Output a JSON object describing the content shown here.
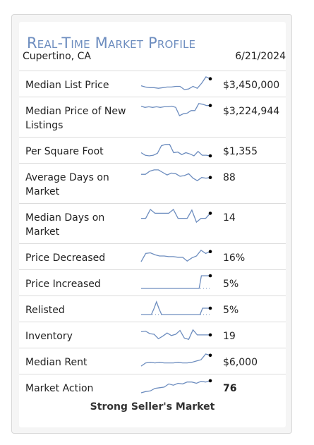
{
  "header": {
    "title": "Real-Time Market Profile",
    "location": "Cupertino, CA",
    "date": "6/21/2024"
  },
  "colors": {
    "line": "#6d8dbf",
    "dot": "#000000",
    "title": "#6d8dbf"
  },
  "rows": [
    {
      "label": "Median List Price",
      "value": "$3,450,000",
      "bold": false,
      "trend": [
        0.3,
        0.2,
        0.15,
        0.15,
        0.1,
        0.15,
        0.2,
        0.2,
        0.25,
        0.25,
        0.0,
        0.05,
        0.25,
        0.1,
        0.5,
        1.0,
        0.85
      ]
    },
    {
      "label": "Median Price of New Listings",
      "value": "$3,224,944",
      "bold": false,
      "trend": [
        0.75,
        0.65,
        0.7,
        0.65,
        0.7,
        0.65,
        0.7,
        0.7,
        0.75,
        0.65,
        0.0,
        0.15,
        0.2,
        0.4,
        0.4,
        0.95,
        0.9,
        0.8,
        0.8
      ]
    },
    {
      "label": "Per Square Foot",
      "value": "$1,355",
      "bold": false,
      "trend": [
        0.25,
        0.05,
        0.0,
        0.05,
        0.2,
        0.8,
        0.9,
        0.9,
        0.25,
        0.3,
        0.1,
        0.25,
        0.15,
        0.0,
        0.35,
        0.05,
        0.05,
        0.0
      ]
    },
    {
      "label": "Average Days on Market",
      "value": "88",
      "bold": false,
      "trend": [
        0.6,
        0.6,
        0.85,
        0.95,
        0.95,
        0.75,
        0.55,
        0.7,
        0.65,
        0.45,
        0.5,
        0.65,
        0.3,
        0.1,
        0.35,
        0.3,
        0.35
      ]
    },
    {
      "label": "Median Days on Market",
      "value": "14",
      "bold": false,
      "trend": [
        0.3,
        0.3,
        1.0,
        0.7,
        0.7,
        0.7,
        0.7,
        1.0,
        0.3,
        0.3,
        0.3,
        0.95,
        0.0,
        0.3,
        0.3,
        0.7
      ]
    },
    {
      "label": "Price Decreased",
      "value": "16%",
      "bold": false,
      "trend": [
        0.05,
        0.7,
        0.75,
        0.6,
        0.5,
        0.5,
        0.45,
        0.45,
        0.4,
        0.4,
        0.1,
        0.35,
        0.5,
        0.95,
        0.7,
        0.85
      ]
    },
    {
      "label": "Price Increased",
      "value": "5%",
      "bold": false,
      "trend": [
        0,
        0,
        0,
        0,
        0,
        0,
        0,
        0,
        0,
        0,
        0,
        0,
        0,
        0,
        0,
        0,
        0,
        0,
        0,
        0,
        0,
        0,
        0,
        0,
        0,
        0,
        0,
        1,
        1,
        1,
        1,
        1
      ]
    },
    {
      "label": "Relisted",
      "value": "5%",
      "bold": false,
      "trend": [
        0,
        0,
        0,
        0,
        0,
        0.45,
        1,
        0.45,
        0,
        0,
        0,
        0,
        0,
        0,
        0,
        0,
        0,
        0,
        0,
        0,
        0,
        0,
        0,
        0,
        0.5,
        0.5,
        0.5,
        0.5
      ]
    },
    {
      "label": "Inventory",
      "value": "19",
      "bold": false,
      "trend": [
        0.7,
        0.75,
        0.55,
        0.5,
        0.15,
        0.35,
        0.6,
        0.4,
        0.5,
        0.8,
        0.2,
        0.1,
        0.85,
        0.45,
        0.45,
        0.45,
        0.45
      ]
    },
    {
      "label": "Median Rent",
      "value": "$6,000",
      "bold": false,
      "trend": [
        0.05,
        0.3,
        0.35,
        0.3,
        0.35,
        0.3,
        0.3,
        0.3,
        0.35,
        0.3,
        0.3,
        0.35,
        0.45,
        0.55,
        1.0,
        0.9
      ]
    },
    {
      "label": "Market Action",
      "value": "76",
      "bold": true,
      "trend": [
        0.0,
        0.1,
        0.15,
        0.35,
        0.4,
        0.45,
        0.7,
        0.6,
        0.75,
        0.7,
        0.85,
        0.85,
        0.75,
        0.9,
        0.85,
        0.95
      ]
    }
  ],
  "summary": "Strong Seller's Market"
}
